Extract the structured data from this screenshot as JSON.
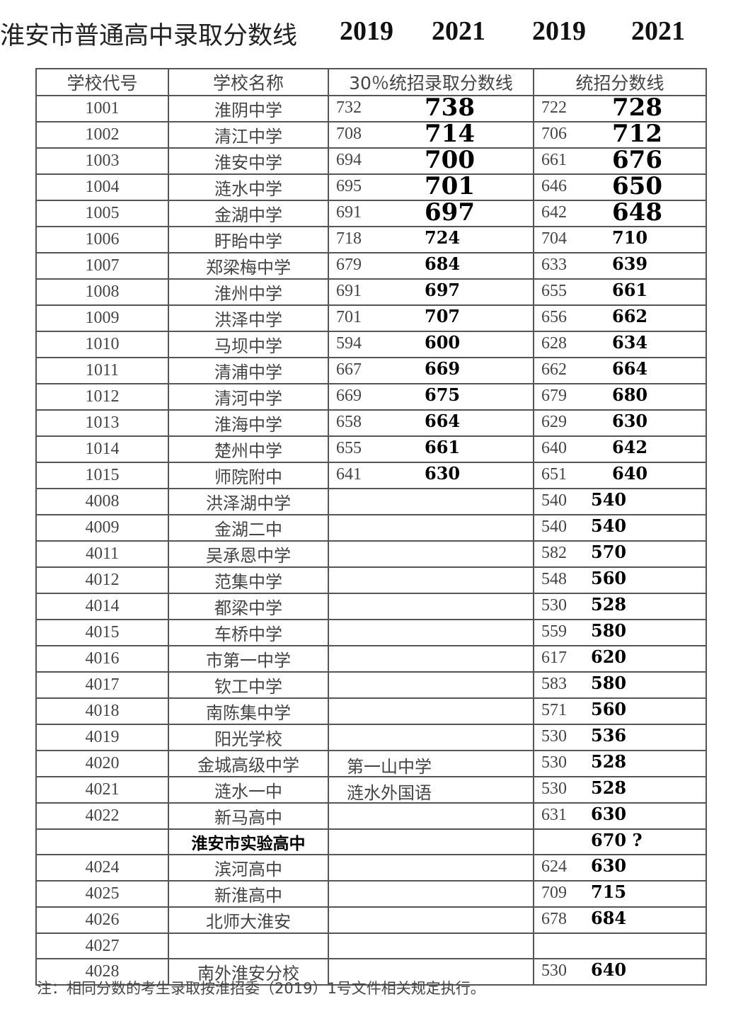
{
  "title": {
    "main": "淮安市普通高中录取分数线",
    "years": [
      "2019",
      "2021",
      "2019",
      "2021"
    ]
  },
  "headers": [
    "学校代号",
    "学校名称",
    "30％统招录取分数线",
    "统招分数线"
  ],
  "rows": [
    {
      "code": "1001",
      "name": "淮阴中学",
      "c30_2019": "732",
      "c30_2021": "738",
      "u2019": "722",
      "u2021": "728"
    },
    {
      "code": "1002",
      "name": "清江中学",
      "c30_2019": "708",
      "c30_2021": "714",
      "u2019": "706",
      "u2021": "712"
    },
    {
      "code": "1003",
      "name": "淮安中学",
      "c30_2019": "694",
      "c30_2021": "700",
      "u2019": "661",
      "u2021": "676"
    },
    {
      "code": "1004",
      "name": "涟水中学",
      "c30_2019": "695",
      "c30_2021": "701",
      "u2019": "646",
      "u2021": "650"
    },
    {
      "code": "1005",
      "name": "金湖中学",
      "c30_2019": "691",
      "c30_2021": "697",
      "u2019": "642",
      "u2021": "648"
    },
    {
      "code": "1006",
      "name": "盱眙中学",
      "c30_2019": "718",
      "c30_2021": "724",
      "u2019": "704",
      "u2021": "710"
    },
    {
      "code": "1007",
      "name": "郑梁梅中学",
      "c30_2019": "679",
      "c30_2021": "684",
      "u2019": "633",
      "u2021": "639"
    },
    {
      "code": "1008",
      "name": "淮州中学",
      "c30_2019": "691",
      "c30_2021": "697",
      "u2019": "655",
      "u2021": "661"
    },
    {
      "code": "1009",
      "name": "洪泽中学",
      "c30_2019": "701",
      "c30_2021": "707",
      "u2019": "656",
      "u2021": "662"
    },
    {
      "code": "1010",
      "name": "马坝中学",
      "c30_2019": "594",
      "c30_2021": "600",
      "u2019": "628",
      "u2021": "634"
    },
    {
      "code": "1011",
      "name": "清浦中学",
      "c30_2019": "667",
      "c30_2021": "669",
      "u2019": "662",
      "u2021": "664"
    },
    {
      "code": "1012",
      "name": "清河中学",
      "c30_2019": "669",
      "c30_2021": "675",
      "u2019": "679",
      "u2021": "680"
    },
    {
      "code": "1013",
      "name": "淮海中学",
      "c30_2019": "658",
      "c30_2021": "664",
      "u2019": "629",
      "u2021": "630"
    },
    {
      "code": "1014",
      "name": "楚州中学",
      "c30_2019": "655",
      "c30_2021": "661",
      "u2019": "640",
      "u2021": "642"
    },
    {
      "code": "1015",
      "name": "师院附中",
      "c30_2019": "641",
      "c30_2021": "630",
      "u2019": "651",
      "u2021": "640"
    },
    {
      "code": "4008",
      "name": "洪泽湖中学",
      "u2019": "540",
      "u2021": "540"
    },
    {
      "code": "4009",
      "name": "金湖二中",
      "u2019": "540",
      "u2021": "540"
    },
    {
      "code": "4011",
      "name": "吴承恩中学",
      "u2019": "582",
      "u2021": "570"
    },
    {
      "code": "4012",
      "name": "范集中学",
      "u2019": "548",
      "u2021": "560"
    },
    {
      "code": "4014",
      "name": "都梁中学",
      "u2019": "530",
      "u2021": "528"
    },
    {
      "code": "4015",
      "name": "车桥中学",
      "u2019": "559",
      "u2021": "580"
    },
    {
      "code": "4016",
      "name": "市第一中学",
      "u2019": "617",
      "u2021": "620"
    },
    {
      "code": "4017",
      "name": "钦工中学",
      "u2019": "583",
      "u2021": "580"
    },
    {
      "code": "4018",
      "name": "南陈集中学",
      "u2019": "571",
      "u2021": "560"
    },
    {
      "code": "4019",
      "name": "阳光学校",
      "u2019": "530",
      "u2021": "536"
    },
    {
      "code": "4020",
      "name": "金城高级中学",
      "c30_note": "第一山中学",
      "u2019": "530",
      "u2021": "528"
    },
    {
      "code": "4021",
      "name": "涟水一中",
      "c30_note": "涟水外国语",
      "u2019": "530",
      "u2021": "528"
    },
    {
      "code": "4022",
      "name": "新马高中",
      "u2019": "631",
      "u2021": "630"
    },
    {
      "code": "",
      "name": "淮安市实验高中",
      "bold": true,
      "u2021": "670 ?"
    },
    {
      "code": "4024",
      "name": "滨河高中",
      "u2019": "624",
      "u2021": "630"
    },
    {
      "code": "4025",
      "name": "新淮高中",
      "u2019": "709",
      "u2021": "715"
    },
    {
      "code": "4026",
      "name": "北师大淮安",
      "u2019": "678",
      "u2021": "684"
    },
    {
      "code": "4027",
      "name": ""
    },
    {
      "code": "4028",
      "name": "南外淮安分校",
      "u2019": "530",
      "u2021": "640"
    }
  ],
  "note": "注：相同分数的考生录取按淮招委（2019）1号文件相关规定执行。"
}
